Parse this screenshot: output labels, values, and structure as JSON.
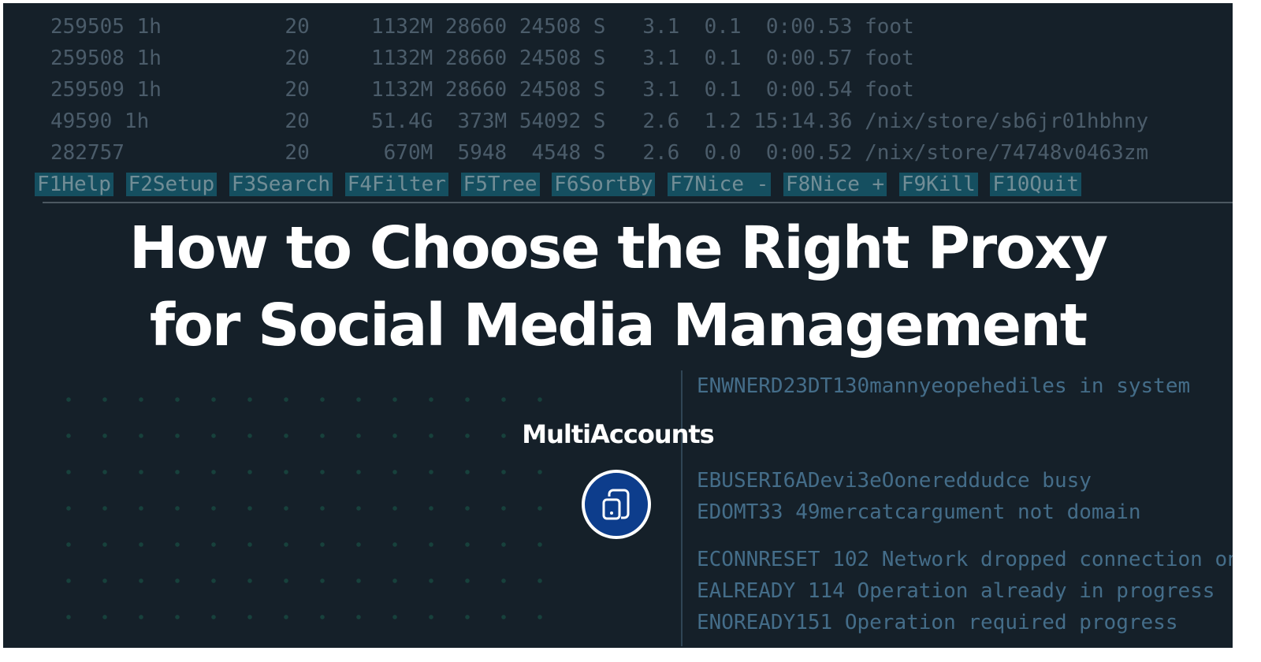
{
  "background_terminal": {
    "process_rows": [
      "259505 1h          20     1132M 28660 24508 S   3.1  0.1  0:00.53 foot",
      "259508 1h          20     1132M 28660 24508 S   3.1  0.1  0:00.57 foot",
      "259509 1h          20     1132M 28660 24508 S   3.1  0.1  0:00.54 foot",
      "49590 1h           20     51.4G  373M 54092 S   2.6  1.2 15:14.36 /nix/store/sb6jr01hbhny",
      "282757             20      670M  5948  4548 S   2.6  0.0  0:00.52 /nix/store/74748v0463zm"
    ],
    "function_keys": [
      "F1Help",
      "F2Setup",
      "F3Search",
      "F4Filter",
      "F5Tree",
      "F6SortBy",
      "F7Nice -",
      "F8Nice +",
      "F9Kill",
      "F10Quit"
    ],
    "error_rows": [
      "ENWNERD23DT130mannyeopehediles in system",
      "EBUSERI6ADevi3eOonereddudce busy",
      "EDOMT33 49mercatcargument not domain",
      "ECONNRESET 102 Network dropped connection on",
      "EALREADY 114 Operation already in progress",
      "ENOREADY151 Operation required progress"
    ]
  },
  "hero": {
    "title_line1": "How to Choose the Right Proxy",
    "title_line2": "for Social Media Management",
    "brand": "MultiAccounts",
    "logo_icon": "devices-icon",
    "logo_color": "#0d3d8c"
  }
}
